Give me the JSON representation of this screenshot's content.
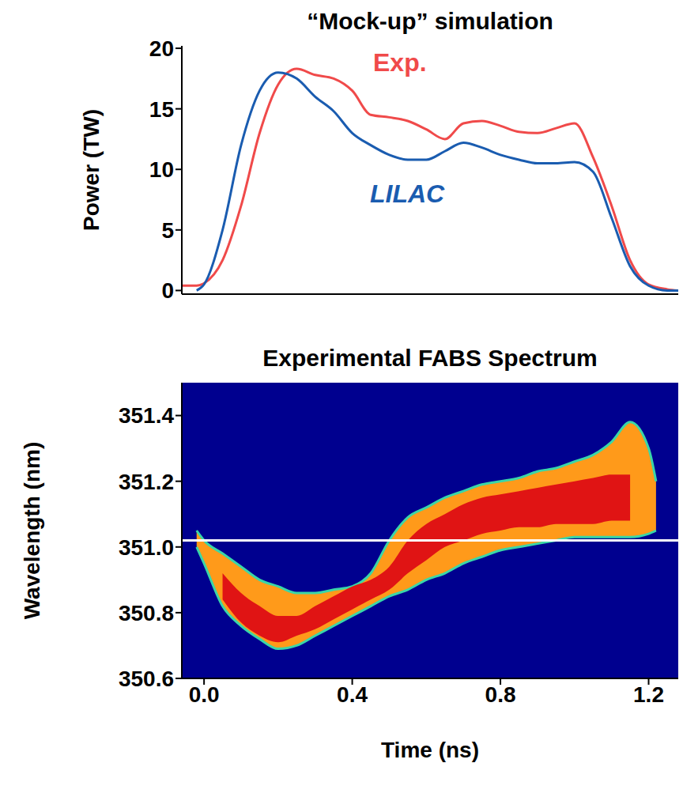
{
  "chart_data": [
    {
      "type": "line",
      "title": "“Mock-up” simulation",
      "y_label": "Power (TW)",
      "x": [
        -0.06,
        -0.02,
        0,
        0.05,
        0.1,
        0.15,
        0.2,
        0.25,
        0.3,
        0.35,
        0.4,
        0.45,
        0.5,
        0.55,
        0.6,
        0.65,
        0.7,
        0.75,
        0.8,
        0.85,
        0.9,
        0.95,
        1.0,
        1.05,
        1.1,
        1.15,
        1.2,
        1.25,
        1.28
      ],
      "series": [
        {
          "name": "Exp.",
          "color": "#f04a4a",
          "values": [
            0.4,
            0.4,
            0.6,
            2.5,
            7,
            13,
            17,
            18.3,
            17.8,
            17.5,
            16.5,
            14.5,
            14.3,
            14,
            13.3,
            12.5,
            13.8,
            14,
            13.6,
            13.1,
            13,
            13.4,
            13.8,
            11,
            7,
            2.5,
            0.5,
            0.1,
            0
          ]
        },
        {
          "name": "LILAC",
          "color": "#1a5cb0",
          "values": [
            null,
            0,
            0.5,
            5,
            12,
            16.5,
            18,
            17.5,
            16,
            14.8,
            13,
            12,
            11.2,
            10.8,
            10.8,
            11.5,
            12.2,
            11.8,
            11.2,
            10.8,
            10.5,
            10.5,
            10.6,
            9.8,
            6,
            2,
            0.4,
            0,
            0
          ]
        }
      ],
      "xlim": [
        -0.06,
        1.28
      ],
      "xticks": [
        0,
        0.2,
        0.4,
        0.6,
        0.8,
        1.0,
        1.2
      ],
      "ylim": [
        -0.3,
        20.2
      ],
      "yticks": [
        0,
        5,
        10,
        15,
        20
      ],
      "tick_labels": "y"
    },
    {
      "type": "area",
      "title": "Experimental FABS Spectrum",
      "x_label": "Time (ns)",
      "y_label": "Wavelength (nm)",
      "x": [
        -0.02,
        0,
        0.05,
        0.1,
        0.15,
        0.2,
        0.25,
        0.3,
        0.35,
        0.4,
        0.45,
        0.5,
        0.55,
        0.6,
        0.65,
        0.7,
        0.75,
        0.8,
        0.85,
        0.9,
        0.95,
        1.0,
        1.05,
        1.1,
        1.15,
        1.2,
        1.22
      ],
      "series": [
        {
          "color": "#ff9a1a",
          "lower": [
            351.0,
            350.95,
            350.82,
            350.76,
            350.72,
            350.69,
            350.7,
            350.73,
            350.76,
            350.79,
            350.82,
            350.85,
            350.87,
            350.9,
            350.92,
            350.95,
            350.97,
            350.99,
            351.0,
            351.01,
            351.02,
            351.03,
            351.03,
            351.03,
            351.03,
            351.04,
            351.05
          ],
          "upper": [
            351.05,
            351.02,
            350.98,
            350.94,
            350.9,
            350.88,
            350.86,
            350.86,
            350.87,
            350.88,
            350.92,
            351.02,
            351.09,
            351.12,
            351.15,
            351.17,
            351.19,
            351.2,
            351.21,
            351.23,
            351.24,
            351.26,
            351.28,
            351.32,
            351.38,
            351.3,
            351.2
          ]
        },
        {
          "color": "#e01414",
          "lower": [
            null,
            null,
            350.84,
            350.77,
            350.73,
            350.71,
            350.73,
            350.75,
            350.78,
            350.81,
            350.84,
            350.87,
            350.92,
            350.96,
            351.0,
            351.02,
            351.04,
            351.05,
            351.06,
            351.06,
            351.07,
            351.07,
            351.07,
            351.08,
            351.08,
            null,
            null
          ],
          "upper": [
            null,
            null,
            350.92,
            350.86,
            350.82,
            350.79,
            350.79,
            350.82,
            350.85,
            350.88,
            350.9,
            350.94,
            351.02,
            351.07,
            351.1,
            351.13,
            351.15,
            351.16,
            351.17,
            351.18,
            351.19,
            351.2,
            351.21,
            351.22,
            351.22,
            null,
            null
          ]
        }
      ],
      "xlim": [
        -0.06,
        1.28
      ],
      "xticks": [
        {
          "value": 0,
          "label": "0.0"
        },
        0.4,
        0.8,
        1.2
      ],
      "ylim": [
        350.6,
        351.5
      ],
      "yticks": [
        350.6,
        350.8,
        {
          "value": 351,
          "label": "351.0"
        },
        351.2,
        351.4
      ],
      "reference_line": {
        "value": 351.02,
        "color": "#ffffff"
      }
    }
  ]
}
